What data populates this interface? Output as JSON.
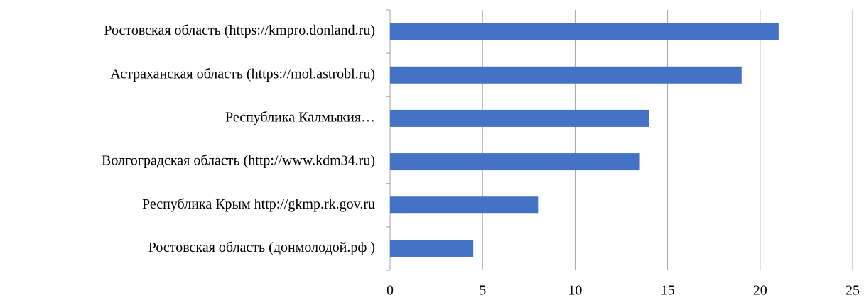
{
  "chart_data": {
    "type": "bar",
    "orientation": "horizontal",
    "categories": [
      "Ростовская область (https://kmpro.donland.ru)",
      "Астраханская область (https://mol.astrobl.ru)",
      "Республика Калмыкия…",
      "Волгоградская область (http://www.kdm34.ru)",
      "Республика Крым http://gkmp.rk.gov.ru",
      "Ростовская область (донмолодой.рф )"
    ],
    "values": [
      21,
      19,
      14,
      13.5,
      8,
      4.5
    ],
    "color": "#4472c4",
    "xlim": [
      0,
      25
    ],
    "xticks": [
      0,
      5,
      10,
      15,
      20,
      25
    ],
    "grid": true
  }
}
